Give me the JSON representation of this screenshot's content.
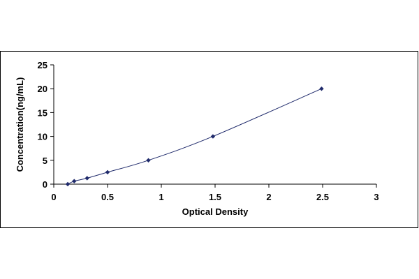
{
  "chart_data": {
    "type": "scatter",
    "title": "",
    "xlabel": "Optical Density",
    "ylabel": "Concentration(ng/mL)",
    "xlim": [
      0,
      3
    ],
    "ylim": [
      0,
      25
    ],
    "x_ticks": [
      "0",
      "0.5",
      "1",
      "1.5",
      "2",
      "2.5",
      "3"
    ],
    "y_ticks": [
      "0",
      "5",
      "10",
      "15",
      "20",
      "25"
    ],
    "grid": false,
    "legend": "none",
    "trendline": true,
    "series": [
      {
        "x": [
          0.13,
          0.19,
          0.31,
          0.5,
          0.88,
          1.48,
          2.49
        ],
        "y": [
          0,
          0.625,
          1.25,
          2.5,
          5,
          10,
          20
        ]
      }
    ],
    "colors": {
      "marker": "#1f2a6b",
      "line": "#1f2a6b",
      "axis": "#000000"
    }
  }
}
